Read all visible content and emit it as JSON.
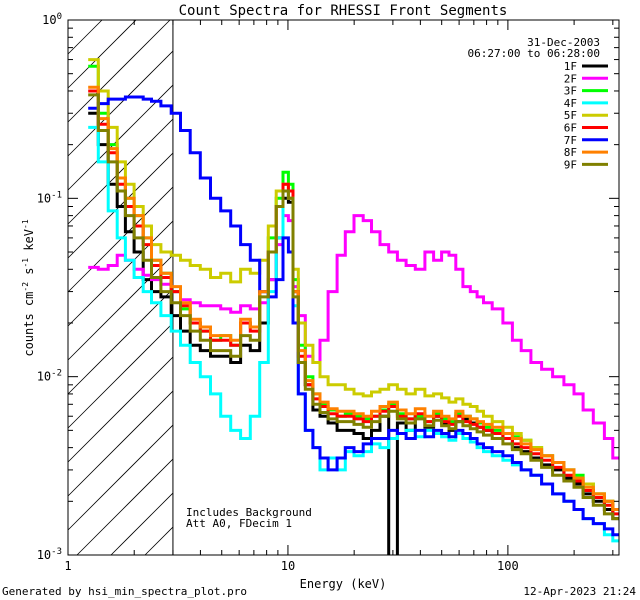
{
  "chart_data": {
    "type": "line",
    "title": "Count Spectra for RHESSI Front Segments",
    "xlabel": "Energy (keV)",
    "ylabel_parts": {
      "base": "counts cm",
      "e1": "-2",
      "mid": " s",
      "e2": "-1",
      "mid2": " keV",
      "e3": "-1"
    },
    "x_scale": "log",
    "y_scale": "log",
    "xlim": [
      1,
      320
    ],
    "ylim": [
      0.001,
      1
    ],
    "x_ticks": [
      {
        "v": 1,
        "label": "1"
      },
      {
        "v": 10,
        "label": "10"
      },
      {
        "v": 100,
        "label": "100"
      }
    ],
    "y_ticks": [
      {
        "v": 1,
        "label": "10",
        "exp": "0"
      },
      {
        "v": 0.1,
        "label": "10",
        "exp": "-1"
      },
      {
        "v": 0.01,
        "label": "10",
        "exp": "-2"
      },
      {
        "v": 0.001,
        "label": "10",
        "exp": "-3"
      }
    ],
    "date": "31-Dec-2003",
    "time_range": "06:27:00 to 06:28:00",
    "annotation_lines": [
      "Includes Background",
      "Att A0, FDecim 1"
    ],
    "shaded_region_kev": [
      1,
      3
    ],
    "energy_bins": [
      1.3,
      1.45,
      1.6,
      1.75,
      1.9,
      2.1,
      2.3,
      2.5,
      2.8,
      3.1,
      3.4,
      3.8,
      4.2,
      4.7,
      5.2,
      5.8,
      6.4,
      7.1,
      7.8,
      8.5,
      9.2,
      9.8,
      10.3,
      10.8,
      11.5,
      12.5,
      13.5,
      14.5,
      16,
      17.5,
      19,
      21,
      23,
      25,
      27.5,
      30,
      33,
      36,
      40,
      44,
      48,
      52,
      56,
      60,
      65,
      70,
      75,
      80,
      90,
      100,
      110,
      120,
      135,
      150,
      170,
      190,
      210,
      230,
      260,
      290,
      310
    ],
    "series": [
      {
        "name": "1F",
        "color": "#000000",
        "values": [
          0.3,
          0.2,
          0.12,
          0.09,
          0.065,
          0.05,
          0.035,
          0.03,
          0.028,
          0.022,
          0.018,
          0.015,
          0.014,
          0.013,
          0.013,
          0.012,
          0.015,
          0.014,
          0.02,
          0.035,
          0.06,
          0.1,
          0.095,
          0.03,
          0.012,
          0.009,
          0.0065,
          0.006,
          0.0055,
          0.005,
          0.005,
          0.0048,
          0.0045,
          0.005,
          0.006,
          0.0009,
          0.0055,
          0.005,
          0.006,
          0.0052,
          0.006,
          0.0055,
          0.005,
          0.0056,
          0.0058,
          0.0055,
          0.0052,
          0.005,
          0.0048,
          0.0045,
          0.004,
          0.0038,
          0.0035,
          0.0032,
          0.003,
          0.0027,
          0.0025,
          0.0022,
          0.002,
          0.0018,
          0.0016
        ]
      },
      {
        "name": "2F",
        "color": "#ff00ff",
        "values": [
          0.041,
          0.04,
          0.042,
          0.048,
          0.045,
          0.04,
          0.037,
          0.035,
          0.033,
          0.03,
          0.027,
          0.026,
          0.025,
          0.025,
          0.024,
          0.023,
          0.025,
          0.024,
          0.026,
          0.035,
          0.055,
          0.08,
          0.075,
          0.032,
          0.022,
          0.013,
          0.012,
          0.016,
          0.03,
          0.048,
          0.065,
          0.08,
          0.075,
          0.065,
          0.055,
          0.05,
          0.045,
          0.042,
          0.04,
          0.05,
          0.045,
          0.05,
          0.048,
          0.04,
          0.032,
          0.03,
          0.028,
          0.026,
          0.024,
          0.02,
          0.016,
          0.014,
          0.012,
          0.011,
          0.01,
          0.009,
          0.008,
          0.0065,
          0.0055,
          0.0045,
          0.0035
        ]
      },
      {
        "name": "3F",
        "color": "#00ff00",
        "values": [
          0.55,
          0.3,
          0.2,
          0.13,
          0.1,
          0.08,
          0.06,
          0.045,
          0.038,
          0.03,
          0.024,
          0.02,
          0.018,
          0.016,
          0.017,
          0.015,
          0.02,
          0.019,
          0.03,
          0.06,
          0.1,
          0.14,
          0.12,
          0.035,
          0.015,
          0.01,
          0.008,
          0.007,
          0.0065,
          0.006,
          0.0062,
          0.006,
          0.0058,
          0.006,
          0.0065,
          0.007,
          0.0062,
          0.0058,
          0.006,
          0.0056,
          0.0062,
          0.0058,
          0.0056,
          0.0062,
          0.006,
          0.0058,
          0.0055,
          0.0052,
          0.005,
          0.0048,
          0.0046,
          0.0044,
          0.004,
          0.0036,
          0.0033,
          0.003,
          0.0028,
          0.0025,
          0.0022,
          0.002,
          0.0018
        ]
      },
      {
        "name": "4F",
        "color": "#00ffff",
        "values": [
          0.25,
          0.16,
          0.085,
          0.06,
          0.045,
          0.036,
          0.03,
          0.026,
          0.022,
          0.018,
          0.015,
          0.012,
          0.01,
          0.008,
          0.006,
          0.005,
          0.0045,
          0.006,
          0.012,
          0.03,
          0.06,
          0.11,
          0.1,
          0.025,
          0.008,
          0.005,
          0.004,
          0.003,
          0.0035,
          0.003,
          0.0038,
          0.0036,
          0.0038,
          0.0042,
          0.004,
          0.0045,
          0.0048,
          0.005,
          0.0046,
          0.005,
          0.0048,
          0.0046,
          0.0044,
          0.0048,
          0.0045,
          0.0043,
          0.004,
          0.0038,
          0.0036,
          0.0034,
          0.0032,
          0.003,
          0.0028,
          0.0025,
          0.0022,
          0.002,
          0.0018,
          0.0016,
          0.0015,
          0.0013,
          0.0012
        ]
      },
      {
        "name": "5F",
        "color": "#cccc00",
        "values": [
          0.6,
          0.4,
          0.25,
          0.16,
          0.12,
          0.09,
          0.07,
          0.055,
          0.05,
          0.048,
          0.045,
          0.042,
          0.04,
          0.036,
          0.038,
          0.034,
          0.04,
          0.038,
          0.045,
          0.07,
          0.11,
          0.12,
          0.11,
          0.04,
          0.02,
          0.015,
          0.012,
          0.01,
          0.009,
          0.009,
          0.0085,
          0.008,
          0.0078,
          0.0082,
          0.0085,
          0.009,
          0.0085,
          0.008,
          0.0085,
          0.0078,
          0.008,
          0.0076,
          0.0072,
          0.0075,
          0.007,
          0.0068,
          0.0064,
          0.006,
          0.0056,
          0.0052,
          0.0048,
          0.0044,
          0.004,
          0.0036,
          0.0033,
          0.003,
          0.0027,
          0.0025,
          0.0022,
          0.002,
          0.0018
        ]
      },
      {
        "name": "6F",
        "color": "#ff0000",
        "values": [
          0.4,
          0.26,
          0.18,
          0.12,
          0.09,
          0.07,
          0.055,
          0.042,
          0.036,
          0.03,
          0.025,
          0.02,
          0.018,
          0.016,
          0.016,
          0.015,
          0.02,
          0.018,
          0.03,
          0.05,
          0.09,
          0.12,
          0.11,
          0.03,
          0.013,
          0.009,
          0.0075,
          0.0068,
          0.0062,
          0.006,
          0.006,
          0.0058,
          0.0056,
          0.006,
          0.0064,
          0.0068,
          0.006,
          0.0058,
          0.0062,
          0.0056,
          0.006,
          0.0056,
          0.0054,
          0.006,
          0.0056,
          0.0054,
          0.0052,
          0.005,
          0.0048,
          0.0045,
          0.0042,
          0.004,
          0.0037,
          0.0034,
          0.0031,
          0.0028,
          0.0026,
          0.0023,
          0.0021,
          0.0019,
          0.0017
        ]
      },
      {
        "name": "7F",
        "color": "#0000ff",
        "values": [
          0.32,
          0.34,
          0.36,
          0.36,
          0.37,
          0.37,
          0.36,
          0.35,
          0.33,
          0.3,
          0.24,
          0.18,
          0.13,
          0.1,
          0.085,
          0.07,
          0.055,
          0.045,
          0.03,
          0.028,
          0.035,
          0.06,
          0.05,
          0.02,
          0.008,
          0.005,
          0.004,
          0.0035,
          0.003,
          0.0035,
          0.004,
          0.0038,
          0.0042,
          0.0045,
          0.0045,
          0.005,
          0.0048,
          0.0045,
          0.005,
          0.0046,
          0.005,
          0.0048,
          0.0046,
          0.005,
          0.0048,
          0.0045,
          0.0042,
          0.004,
          0.0038,
          0.0036,
          0.0033,
          0.003,
          0.0028,
          0.0025,
          0.0022,
          0.002,
          0.0018,
          0.0016,
          0.0015,
          0.0014,
          0.0013
        ]
      },
      {
        "name": "8F",
        "color": "#ff8000",
        "values": [
          0.42,
          0.28,
          0.19,
          0.13,
          0.1,
          0.08,
          0.06,
          0.045,
          0.038,
          0.032,
          0.026,
          0.021,
          0.019,
          0.017,
          0.017,
          0.016,
          0.021,
          0.019,
          0.03,
          0.05,
          0.09,
          0.11,
          0.1,
          0.03,
          0.014,
          0.0095,
          0.008,
          0.0072,
          0.0066,
          0.0064,
          0.0064,
          0.0062,
          0.006,
          0.0064,
          0.0068,
          0.0072,
          0.0065,
          0.0062,
          0.0066,
          0.006,
          0.0064,
          0.006,
          0.0058,
          0.0064,
          0.006,
          0.0058,
          0.0056,
          0.0054,
          0.0052,
          0.0048,
          0.0045,
          0.0042,
          0.0039,
          0.0036,
          0.0033,
          0.003,
          0.0027,
          0.0024,
          0.0022,
          0.002,
          0.0018
        ]
      },
      {
        "name": "9F",
        "color": "#808000",
        "values": [
          0.38,
          0.24,
          0.16,
          0.11,
          0.08,
          0.06,
          0.045,
          0.036,
          0.03,
          0.026,
          0.022,
          0.018,
          0.016,
          0.014,
          0.014,
          0.013,
          0.017,
          0.016,
          0.028,
          0.05,
          0.09,
          0.11,
          0.1,
          0.028,
          0.012,
          0.0085,
          0.007,
          0.0063,
          0.0058,
          0.0056,
          0.0056,
          0.0054,
          0.0052,
          0.0056,
          0.006,
          0.0064,
          0.0058,
          0.0055,
          0.0058,
          0.0053,
          0.0057,
          0.0053,
          0.0051,
          0.0056,
          0.0053,
          0.0051,
          0.0049,
          0.0047,
          0.0045,
          0.0042,
          0.0039,
          0.0037,
          0.0034,
          0.0031,
          0.0028,
          0.0026,
          0.0024,
          0.0021,
          0.0019,
          0.0017,
          0.0016
        ]
      }
    ]
  },
  "footer": {
    "left": "Generated by hsi_min_spectra_plot.pro",
    "right": "12-Apr-2023 21:24"
  }
}
